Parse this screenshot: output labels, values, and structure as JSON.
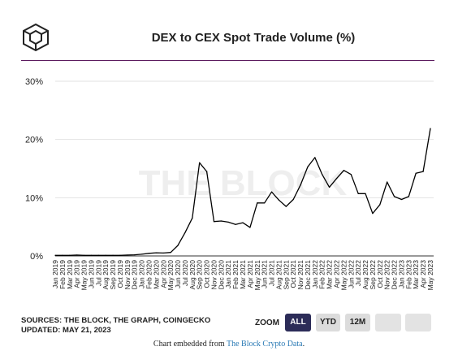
{
  "header": {
    "title": "DEX to CEX Spot Trade Volume (%)",
    "logo_icon": "the-block-cube-icon"
  },
  "watermark": "THE BLOCK",
  "footer": {
    "sources": "SOURCES: THE BLOCK, THE GRAPH, COINGECKO",
    "updated": "UPDATED: MAY 21, 2023",
    "embed_prefix": "Chart embedded from ",
    "embed_link": "The Block Crypto Data",
    "embed_suffix": "."
  },
  "zoom": {
    "label": "ZOOM",
    "buttons": [
      "ALL",
      "YTD",
      "12M"
    ],
    "active": "ALL"
  },
  "colors": {
    "line": "#000000",
    "accent": "#5b1a5e",
    "active_button": "#2c2c58",
    "link": "#2a7ab5"
  },
  "chart_data": {
    "type": "line",
    "title": "DEX to CEX Spot Trade Volume (%)",
    "ylim": [
      0,
      30
    ],
    "y_ticks": [
      "0%",
      "10%",
      "20%",
      "30%"
    ],
    "grid": true,
    "categories": [
      "Jan 2019",
      "Feb 2019",
      "Mar 2019",
      "Apr 2019",
      "May 2019",
      "Jun 2019",
      "Jul 2019",
      "Aug 2019",
      "Sep 2019",
      "Oct 2019",
      "Nov 2019",
      "Dec 2019",
      "Jan 2020",
      "Feb 2020",
      "Mar 2020",
      "Apr 2020",
      "May 2020",
      "Jun 2020",
      "Jul 2020",
      "Aug 2020",
      "Sep 2020",
      "Oct 2020",
      "Nov 2020",
      "Dec 2020",
      "Jan 2021",
      "Feb 2021",
      "Mar 2021",
      "Apr 2021",
      "May 2021",
      "Jun 2021",
      "Jul 2021",
      "Aug 2021",
      "Sep 2021",
      "Oct 2021",
      "Nov 2021",
      "Dec 2021",
      "Jan 2022",
      "Feb 2022",
      "Mar 2022",
      "Apr 2022",
      "May 2022",
      "Jun 2022",
      "Jul 2022",
      "Aug 2022",
      "Sep 2022",
      "Oct 2022",
      "Nov 2022",
      "Dec 2022",
      "Jan 2023",
      "Feb 2023",
      "Mar 2023",
      "Apr 2023",
      "May 2023"
    ],
    "values": [
      0.1,
      0.1,
      0.1,
      0.15,
      0.1,
      0.1,
      0.1,
      0.1,
      0.1,
      0.1,
      0.15,
      0.2,
      0.3,
      0.45,
      0.55,
      0.5,
      0.6,
      1.8,
      4.0,
      6.5,
      16.0,
      14.5,
      5.9,
      6.0,
      5.8,
      5.4,
      5.7,
      4.9,
      9.1,
      9.1,
      11.0,
      9.6,
      8.5,
      9.7,
      12.2,
      15.3,
      16.9,
      14.0,
      11.8,
      13.3,
      14.7,
      14.0,
      10.7,
      10.7,
      7.3,
      8.8,
      12.7,
      10.2,
      9.7,
      10.2,
      14.2,
      14.5,
      21.9
    ]
  }
}
